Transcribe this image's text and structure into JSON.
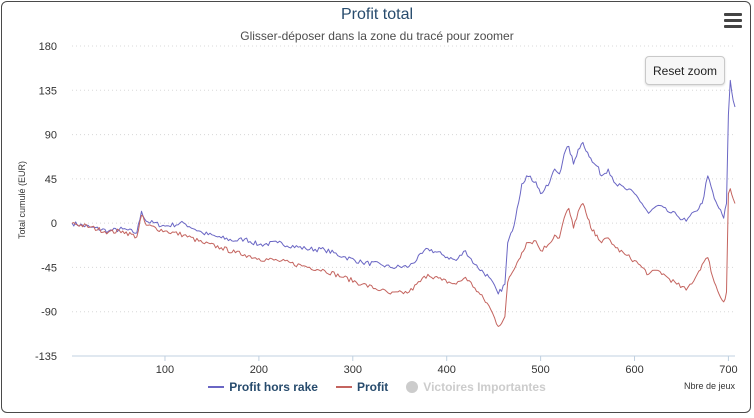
{
  "header": {
    "title": "Profit total",
    "subtitle": "Glisser-déposer dans la zone du tracé pour zoomer",
    "menu_icon": "hamburger-menu-icon",
    "reset_label": "Reset zoom"
  },
  "legend": {
    "items": [
      {
        "label": "Profit hors rake",
        "color": "#6a66c4",
        "active": true
      },
      {
        "label": "Profit",
        "color": "#c4645f",
        "active": true
      },
      {
        "label": "Victoires Importantes",
        "color": "#cccccc",
        "active": false
      }
    ]
  },
  "chart_data": {
    "type": "line",
    "ylabel": "Total cumulé (EUR)",
    "xlabel": "Nbre de jeux",
    "xlim": [
      1,
      707
    ],
    "ylim": [
      -135,
      180
    ],
    "yticks": [
      -135,
      -90,
      -45,
      0,
      45,
      90,
      135,
      180
    ],
    "xticks": [
      100,
      200,
      300,
      400,
      500,
      600,
      700
    ],
    "grid": "horizontal-dotted",
    "legend_position": "bottom",
    "series": [
      {
        "name": "Profit hors rake",
        "color": "#6a66c4",
        "points": [
          [
            1,
            0
          ],
          [
            20,
            -4
          ],
          [
            40,
            -8
          ],
          [
            55,
            -6
          ],
          [
            70,
            -10
          ],
          [
            75,
            12
          ],
          [
            80,
            2
          ],
          [
            100,
            -3
          ],
          [
            120,
            0
          ],
          [
            140,
            -10
          ],
          [
            160,
            -15
          ],
          [
            175,
            -18
          ],
          [
            185,
            -16
          ],
          [
            200,
            -22
          ],
          [
            220,
            -20
          ],
          [
            250,
            -26
          ],
          [
            270,
            -27
          ],
          [
            290,
            -34
          ],
          [
            310,
            -40
          ],
          [
            330,
            -42
          ],
          [
            340,
            -45
          ],
          [
            360,
            -44
          ],
          [
            380,
            -26
          ],
          [
            395,
            -32
          ],
          [
            410,
            -38
          ],
          [
            420,
            -28
          ],
          [
            430,
            -42
          ],
          [
            445,
            -55
          ],
          [
            455,
            -72
          ],
          [
            462,
            -62
          ],
          [
            465,
            -20
          ],
          [
            470,
            -8
          ],
          [
            475,
            15
          ],
          [
            480,
            40
          ],
          [
            485,
            48
          ],
          [
            495,
            42
          ],
          [
            500,
            30
          ],
          [
            508,
            38
          ],
          [
            515,
            55
          ],
          [
            520,
            50
          ],
          [
            525,
            70
          ],
          [
            530,
            78
          ],
          [
            535,
            60
          ],
          [
            540,
            75
          ],
          [
            545,
            82
          ],
          [
            550,
            72
          ],
          [
            555,
            62
          ],
          [
            560,
            58
          ],
          [
            565,
            48
          ],
          [
            572,
            55
          ],
          [
            580,
            40
          ],
          [
            590,
            35
          ],
          [
            600,
            30
          ],
          [
            608,
            20
          ],
          [
            615,
            10
          ],
          [
            625,
            18
          ],
          [
            635,
            12
          ],
          [
            645,
            8
          ],
          [
            655,
            2
          ],
          [
            665,
            12
          ],
          [
            672,
            20
          ],
          [
            678,
            48
          ],
          [
            685,
            25
          ],
          [
            690,
            15
          ],
          [
            695,
            5
          ],
          [
            698,
            20
          ],
          [
            700,
            110
          ],
          [
            702,
            145
          ],
          [
            705,
            125
          ],
          [
            707,
            118
          ]
        ]
      },
      {
        "name": "Profit",
        "color": "#c4645f",
        "points": [
          [
            1,
            0
          ],
          [
            20,
            -4
          ],
          [
            40,
            -9
          ],
          [
            55,
            -8
          ],
          [
            70,
            -14
          ],
          [
            75,
            8
          ],
          [
            80,
            -2
          ],
          [
            100,
            -8
          ],
          [
            120,
            -12
          ],
          [
            140,
            -20
          ],
          [
            160,
            -25
          ],
          [
            175,
            -30
          ],
          [
            185,
            -32
          ],
          [
            200,
            -36
          ],
          [
            220,
            -38
          ],
          [
            250,
            -44
          ],
          [
            270,
            -48
          ],
          [
            290,
            -55
          ],
          [
            310,
            -62
          ],
          [
            330,
            -68
          ],
          [
            340,
            -72
          ],
          [
            360,
            -70
          ],
          [
            380,
            -52
          ],
          [
            395,
            -58
          ],
          [
            410,
            -62
          ],
          [
            420,
            -55
          ],
          [
            430,
            -66
          ],
          [
            445,
            -84
          ],
          [
            455,
            -105
          ],
          [
            462,
            -95
          ],
          [
            465,
            -60
          ],
          [
            470,
            -50
          ],
          [
            475,
            -40
          ],
          [
            480,
            -30
          ],
          [
            485,
            -20
          ],
          [
            495,
            -18
          ],
          [
            500,
            -28
          ],
          [
            508,
            -22
          ],
          [
            515,
            -12
          ],
          [
            520,
            -15
          ],
          [
            525,
            5
          ],
          [
            530,
            15
          ],
          [
            535,
            -5
          ],
          [
            540,
            12
          ],
          [
            545,
            20
          ],
          [
            550,
            5
          ],
          [
            555,
            -8
          ],
          [
            560,
            -12
          ],
          [
            565,
            -20
          ],
          [
            572,
            -15
          ],
          [
            580,
            -25
          ],
          [
            590,
            -32
          ],
          [
            600,
            -38
          ],
          [
            608,
            -45
          ],
          [
            615,
            -52
          ],
          [
            625,
            -48
          ],
          [
            635,
            -55
          ],
          [
            645,
            -62
          ],
          [
            655,
            -68
          ],
          [
            665,
            -55
          ],
          [
            672,
            -42
          ],
          [
            678,
            -35
          ],
          [
            685,
            -60
          ],
          [
            690,
            -72
          ],
          [
            695,
            -80
          ],
          [
            698,
            -70
          ],
          [
            700,
            30
          ],
          [
            702,
            35
          ],
          [
            705,
            25
          ],
          [
            707,
            20
          ]
        ]
      }
    ]
  }
}
